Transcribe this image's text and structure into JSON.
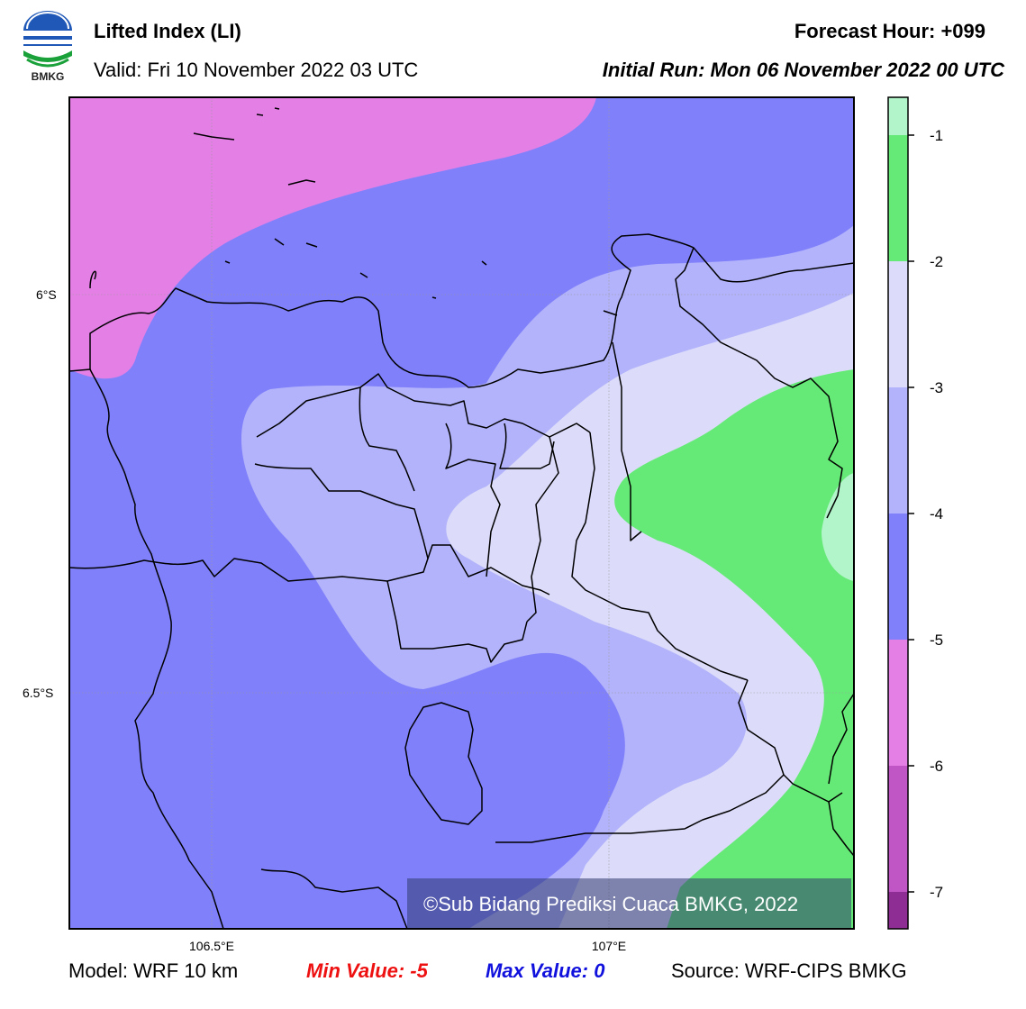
{
  "header": {
    "logo_text": "BMKG",
    "title": "Lifted Index (LI)",
    "valid": "Valid: Fri 10 November 2022 03 UTC",
    "forecast_hour": "Forecast Hour: +099",
    "initial_run": "Initial Run: Mon 06 November 2022 00 UTC"
  },
  "map": {
    "lat_labels": [
      "6°S",
      "6.5°S"
    ],
    "lon_labels": [
      "106.5°E",
      "107°E"
    ],
    "watermark": "©Sub Bidang Prediksi Cuaca BMKG, 2022"
  },
  "colorbar": {
    "ticks": [
      "-1",
      "-2",
      "-3",
      "-4",
      "-5",
      "-6",
      "-7"
    ],
    "colors": {
      "above_-1": "#b3f5cb",
      "-2_to_-1": "#66ea77",
      "-3_to_-2": "#dcdcfa",
      "-4_to_-3": "#b3b3fb",
      "-5_to_-4": "#8080fb",
      "-6_to_-5": "#e47fe6",
      "-7_to_-6": "#c055c6",
      "below_-7": "#8e2e94"
    }
  },
  "footer": {
    "model": "Model: WRF 10 km",
    "min_value": "Min Value: -5",
    "max_value": "Max Value: 0",
    "source": "Source: WRF-CIPS BMKG"
  }
}
